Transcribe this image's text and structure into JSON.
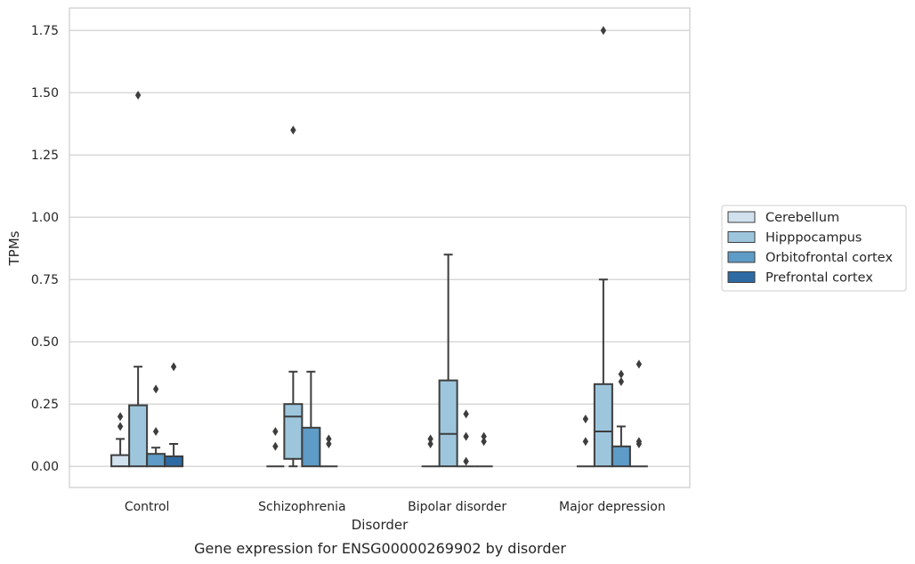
{
  "chart_data": {
    "type": "box",
    "caption": "Gene expression for ENSG00000269902 by disorder",
    "xlabel": "Disorder",
    "ylabel": "TPMs",
    "ylim": [
      -0.085,
      1.84
    ],
    "yticks": [
      0.0,
      0.25,
      0.5,
      0.75,
      1.0,
      1.25,
      1.5,
      1.75
    ],
    "ytick_labels": [
      "0.00",
      "0.25",
      "0.50",
      "0.75",
      "1.00",
      "1.25",
      "1.50",
      "1.75"
    ],
    "grid": "horizontal",
    "legend_position": "right",
    "categories": [
      "Control",
      "Schizophrenia",
      "Bipolar disorder",
      "Major depression"
    ],
    "series": [
      {
        "name": "Cerebellum",
        "color": "#d1e1ee"
      },
      {
        "name": "Hipppocampus",
        "color": "#9dc6dd"
      },
      {
        "name": "Orbitofrontal cortex",
        "color": "#5e9bc6"
      },
      {
        "name": "Prefrontal cortex",
        "color": "#2d6aa4"
      }
    ],
    "boxes": [
      {
        "category": "Control",
        "series": "Cerebellum",
        "whisker_low": 0.0,
        "q1": 0.0,
        "median": 0.0,
        "q3": 0.045,
        "whisker_high": 0.11,
        "outliers": [
          0.16,
          0.2
        ]
      },
      {
        "category": "Control",
        "series": "Hipppocampus",
        "whisker_low": 0.0,
        "q1": 0.0,
        "median": 0.0,
        "q3": 0.245,
        "whisker_high": 0.4,
        "outliers": [
          1.49
        ]
      },
      {
        "category": "Control",
        "series": "Orbitofrontal cortex",
        "whisker_low": 0.0,
        "q1": 0.0,
        "median": 0.0,
        "q3": 0.05,
        "whisker_high": 0.075,
        "outliers": [
          0.14,
          0.31
        ]
      },
      {
        "category": "Control",
        "series": "Prefrontal cortex",
        "whisker_low": 0.0,
        "q1": 0.0,
        "median": 0.0,
        "q3": 0.04,
        "whisker_high": 0.09,
        "outliers": [
          0.4
        ]
      },
      {
        "category": "Schizophrenia",
        "series": "Cerebellum",
        "whisker_low": 0.0,
        "q1": 0.0,
        "median": 0.0,
        "q3": 0.0,
        "whisker_high": 0.0,
        "outliers": [
          0.08,
          0.14
        ]
      },
      {
        "category": "Schizophrenia",
        "series": "Hipppocampus",
        "whisker_low": 0.0,
        "q1": 0.03,
        "median": 0.2,
        "q3": 0.25,
        "whisker_high": 0.38,
        "outliers": [
          1.35
        ]
      },
      {
        "category": "Schizophrenia",
        "series": "Orbitofrontal cortex",
        "whisker_low": 0.0,
        "q1": 0.0,
        "median": 0.0,
        "q3": 0.155,
        "whisker_high": 0.38,
        "outliers": []
      },
      {
        "category": "Schizophrenia",
        "series": "Prefrontal cortex",
        "whisker_low": 0.0,
        "q1": 0.0,
        "median": 0.0,
        "q3": 0.0,
        "whisker_high": 0.0,
        "outliers": [
          0.09,
          0.11
        ]
      },
      {
        "category": "Bipolar disorder",
        "series": "Cerebellum",
        "whisker_low": 0.0,
        "q1": 0.0,
        "median": 0.0,
        "q3": 0.0,
        "whisker_high": 0.0,
        "outliers": [
          0.09,
          0.11
        ]
      },
      {
        "category": "Bipolar disorder",
        "series": "Hipppocampus",
        "whisker_low": 0.0,
        "q1": 0.0,
        "median": 0.13,
        "q3": 0.345,
        "whisker_high": 0.85,
        "outliers": []
      },
      {
        "category": "Bipolar disorder",
        "series": "Orbitofrontal cortex",
        "whisker_low": 0.0,
        "q1": 0.0,
        "median": 0.0,
        "q3": 0.0,
        "whisker_high": 0.0,
        "outliers": [
          0.02,
          0.12,
          0.21
        ]
      },
      {
        "category": "Bipolar disorder",
        "series": "Prefrontal cortex",
        "whisker_low": 0.0,
        "q1": 0.0,
        "median": 0.0,
        "q3": 0.0,
        "whisker_high": 0.0,
        "outliers": [
          0.1,
          0.12
        ]
      },
      {
        "category": "Major depression",
        "series": "Cerebellum",
        "whisker_low": 0.0,
        "q1": 0.0,
        "median": 0.0,
        "q3": 0.0,
        "whisker_high": 0.0,
        "outliers": [
          0.1,
          0.19
        ]
      },
      {
        "category": "Major depression",
        "series": "Hipppocampus",
        "whisker_low": 0.0,
        "q1": 0.0,
        "median": 0.14,
        "q3": 0.33,
        "whisker_high": 0.75,
        "outliers": [
          1.75
        ]
      },
      {
        "category": "Major depression",
        "series": "Orbitofrontal cortex",
        "whisker_low": 0.0,
        "q1": 0.0,
        "median": 0.0,
        "q3": 0.08,
        "whisker_high": 0.16,
        "outliers": [
          0.34,
          0.37
        ]
      },
      {
        "category": "Major depression",
        "series": "Prefrontal cortex",
        "whisker_low": 0.0,
        "q1": 0.0,
        "median": 0.0,
        "q3": 0.0,
        "whisker_high": 0.0,
        "outliers": [
          0.09,
          0.1,
          0.41
        ]
      }
    ]
  }
}
